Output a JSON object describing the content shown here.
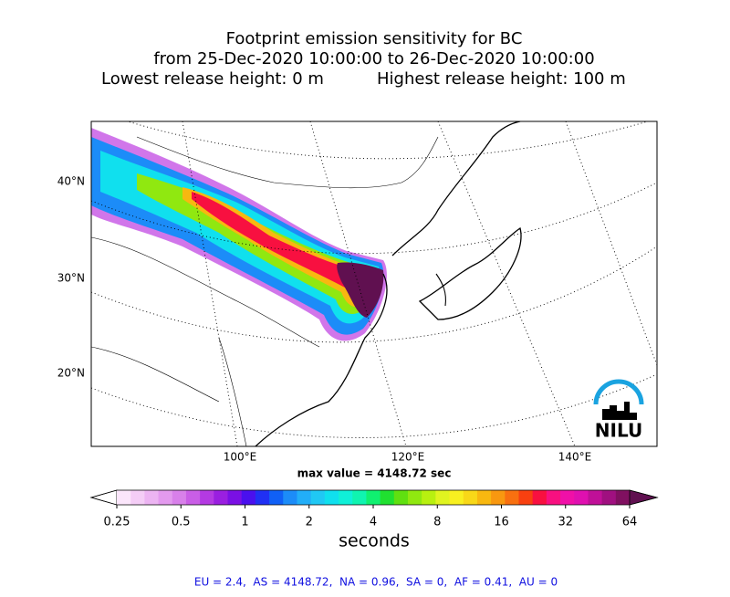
{
  "title": {
    "line1": "Footprint emission sensitivity for BC",
    "line2": "from 25-Dec-2020 10:00:00 to 26-Dec-2020 10:00:00",
    "lowest": "Lowest release height: 0 m",
    "highest": "Highest release height: 100 m"
  },
  "map": {
    "lat_labels": [
      "40°N",
      "30°N",
      "20°N"
    ],
    "lon_labels": [
      "100°E",
      "120°E",
      "140°E"
    ],
    "max_value": "max value = 4148.72 sec",
    "logo": "NILU"
  },
  "colorbar": {
    "ticks": [
      0.25,
      0.5,
      1,
      2,
      4,
      8,
      16,
      32,
      64
    ],
    "label": "seconds",
    "colors": [
      "#ffffff",
      "#fbe6fb",
      "#f4cdf6",
      "#ecb4f2",
      "#e39aee",
      "#d880ea",
      "#c95ee6",
      "#b43ae2",
      "#9a1fe0",
      "#7a10e4",
      "#4a10ee",
      "#2030f4",
      "#1060f6",
      "#1c8cf8",
      "#22aef8",
      "#20c8f4",
      "#10e0ee",
      "#10f0d8",
      "#10f4b0",
      "#10f070",
      "#20e030",
      "#60e010",
      "#90e810",
      "#b8f010",
      "#e0f420",
      "#f8f020",
      "#f8d818",
      "#f8b810",
      "#f89810",
      "#f87010",
      "#f84010",
      "#f81040",
      "#f81080",
      "#f010a8",
      "#e010b0",
      "#c01098",
      "#a01080",
      "#801060",
      "#601050"
    ]
  },
  "footer": "EU = 2.4,  AS = 4148.72,  NA = 0.96,  SA = 0,  AF = 0.41,  AU = 0"
}
